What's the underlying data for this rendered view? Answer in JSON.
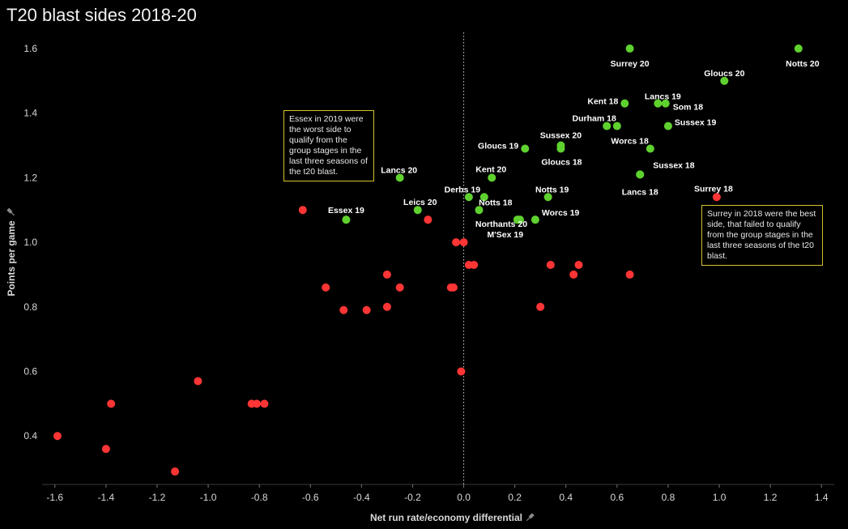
{
  "chart_data": {
    "type": "scatter",
    "title": "T20 blast sides 2018-20",
    "xlabel": "Net run rate/economy differential",
    "ylabel": "Points per game",
    "xlim": [
      -1.65,
      1.45
    ],
    "ylim": [
      0.25,
      1.65
    ],
    "xticks": [
      -1.6,
      -1.4,
      -1.2,
      -1.0,
      -0.8,
      -0.6,
      -0.4,
      -0.2,
      0.0,
      0.2,
      0.4,
      0.6,
      0.8,
      1.0,
      1.2,
      1.4
    ],
    "xtick_labels": [
      "-1.6",
      "-1.4",
      "-1.2",
      "-1.0",
      "-0.8",
      "-0.6",
      "-0.4",
      "-0.2",
      "0.0",
      "0.2",
      "0.4",
      "0.6",
      "0.8",
      "1.0",
      "1.2",
      "1.4"
    ],
    "yticks": [
      0.4,
      0.6,
      0.8,
      1.0,
      1.2,
      1.4,
      1.6
    ],
    "ytick_labels": [
      "0.4",
      "0.6",
      "0.8",
      "1.0",
      "1.2",
      "1.4",
      "1.6"
    ],
    "grid": false,
    "zero_line": true,
    "colors": {
      "qualified": "#5fd12f",
      "eliminated": "#ff3535",
      "axis_icon": "pin-icon"
    },
    "series": [
      {
        "status": "qualified",
        "points": [
          {
            "x": 0.65,
            "y": 1.6,
            "label": "Surrey 20"
          },
          {
            "x": 1.31,
            "y": 1.6,
            "label": "Notts 20"
          },
          {
            "x": 1.02,
            "y": 1.5,
            "label": "Gloucs 20"
          },
          {
            "x": 0.63,
            "y": 1.43,
            "label": "Kent 18"
          },
          {
            "x": 0.76,
            "y": 1.43,
            "label": "Lancs 19"
          },
          {
            "x": 0.79,
            "y": 1.43,
            "label": "Som 18"
          },
          {
            "x": 0.56,
            "y": 1.36,
            "label": ""
          },
          {
            "x": 0.6,
            "y": 1.36,
            "label": "Durham 18"
          },
          {
            "x": 0.8,
            "y": 1.36,
            "label": "Sussex 19"
          },
          {
            "x": 0.38,
            "y": 1.3,
            "label": "Sussex 20"
          },
          {
            "x": 0.38,
            "y": 1.29,
            "label": "Gloucs 18"
          },
          {
            "x": 0.24,
            "y": 1.29,
            "label": "Gloucs 19"
          },
          {
            "x": 0.73,
            "y": 1.29,
            "label": "Worcs 18"
          },
          {
            "x": 0.69,
            "y": 1.21,
            "label": "Sussex 18"
          },
          {
            "x": 0.69,
            "y": 1.21,
            "label": "Lancs 18"
          },
          {
            "x": -0.25,
            "y": 1.2,
            "label": "Lancs 20"
          },
          {
            "x": 0.11,
            "y": 1.2,
            "label": "Kent 20"
          },
          {
            "x": 0.02,
            "y": 1.14,
            "label": "Derbs 19"
          },
          {
            "x": 0.08,
            "y": 1.14,
            "label": "Notts 18"
          },
          {
            "x": 0.33,
            "y": 1.14,
            "label": "Notts 19"
          },
          {
            "x": -0.18,
            "y": 1.1,
            "label": "Leics 20"
          },
          {
            "x": 0.06,
            "y": 1.1,
            "label": ""
          },
          {
            "x": 0.22,
            "y": 1.07,
            "label": "Northants 20"
          },
          {
            "x": 0.28,
            "y": 1.07,
            "label": "Worcs 19"
          },
          {
            "x": -0.46,
            "y": 1.07,
            "label": "Essex 19"
          },
          {
            "x": 0.21,
            "y": 1.07,
            "label": "M'Sex 19"
          }
        ]
      },
      {
        "status": "eliminated",
        "points": [
          {
            "x": 0.99,
            "y": 1.14,
            "label": "Surrey 18"
          },
          {
            "x": -0.63,
            "y": 1.1,
            "label": ""
          },
          {
            "x": -0.14,
            "y": 1.07,
            "label": ""
          },
          {
            "x": -0.03,
            "y": 1.0,
            "label": ""
          },
          {
            "x": 0.0,
            "y": 1.0,
            "label": ""
          },
          {
            "x": 0.02,
            "y": 0.93,
            "label": ""
          },
          {
            "x": 0.04,
            "y": 0.93,
            "label": ""
          },
          {
            "x": 0.34,
            "y": 0.93,
            "label": ""
          },
          {
            "x": 0.45,
            "y": 0.93,
            "label": ""
          },
          {
            "x": 0.43,
            "y": 0.9,
            "label": ""
          },
          {
            "x": 0.65,
            "y": 0.9,
            "label": ""
          },
          {
            "x": -0.3,
            "y": 0.9,
            "label": ""
          },
          {
            "x": -0.54,
            "y": 0.86,
            "label": ""
          },
          {
            "x": -0.25,
            "y": 0.86,
            "label": ""
          },
          {
            "x": -0.05,
            "y": 0.86,
            "label": ""
          },
          {
            "x": -0.04,
            "y": 0.86,
            "label": ""
          },
          {
            "x": -0.47,
            "y": 0.79,
            "label": ""
          },
          {
            "x": -0.38,
            "y": 0.79,
            "label": ""
          },
          {
            "x": -0.3,
            "y": 0.8,
            "label": ""
          },
          {
            "x": 0.3,
            "y": 0.8,
            "label": ""
          },
          {
            "x": -0.01,
            "y": 0.6,
            "label": ""
          },
          {
            "x": -1.04,
            "y": 0.57,
            "label": ""
          },
          {
            "x": -1.38,
            "y": 0.5,
            "label": ""
          },
          {
            "x": -0.83,
            "y": 0.5,
            "label": ""
          },
          {
            "x": -0.81,
            "y": 0.5,
            "label": ""
          },
          {
            "x": -0.78,
            "y": 0.5,
            "label": ""
          },
          {
            "x": -1.59,
            "y": 0.4,
            "label": ""
          },
          {
            "x": -1.4,
            "y": 0.36,
            "label": ""
          },
          {
            "x": -1.13,
            "y": 0.29,
            "label": ""
          }
        ]
      }
    ],
    "annotations": [
      {
        "id": "essex",
        "text": "Essex in 2019 were the worst side to qualify from the group stages in the last three seasons of the t20 blast."
      },
      {
        "id": "surrey",
        "text": "Surrey in 2018 were the best side, that failed to qualify from the group stages in the last three seasons of the t20 blast."
      }
    ]
  }
}
